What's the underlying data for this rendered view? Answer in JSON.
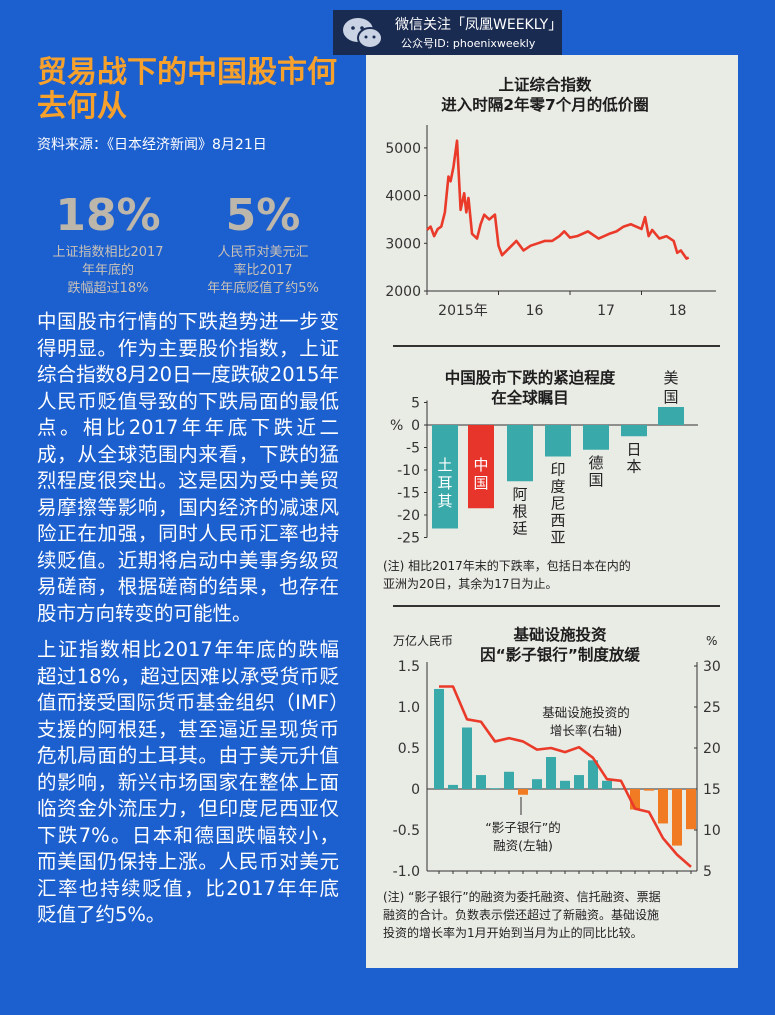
{
  "badge": {
    "line1": "微信关注「凤凰WEEKLY」",
    "line2": "公众号ID: phoenixweekly",
    "icon": "wechat-icon"
  },
  "article": {
    "title": "贸易战下的中国股市何去何从",
    "source": "资料来源：《日本经济新闻》8月21日",
    "stats": [
      {
        "value": "18%",
        "label": "上证指数相比2017年年底的跌幅超过18%"
      },
      {
        "value": "5%",
        "label": "人民币对美元汇率比2017年年底贬值了约5%"
      }
    ],
    "paragraphs": [
      "中国股市行情的下跌趋势进一步变得明显。作为主要股价指数，上证综合指数8月20日一度跌破2015年人民币贬值导致的下跌局面的最低点。相比2017年年底下跌近二成，从全球范围内来看，下跌的猛烈程度很突出。这是因为受中美贸易摩擦等影响，国内经济的减速风险正在加强，同时人民币汇率也持续贬值。近期将启动中美事务级贸易磋商，根据磋商的结果，也存在股市方向转变的可能性。",
      "上证指数相比2017年年底的跌幅超过18%，超过因难以承受货币贬值而接受国际货币基金组织（IMF）支援的阿根廷，甚至逼近呈现货币危机局面的土耳其。由于美元升值的影响，新兴市场国家在整体上面临资金外流压力，但印度尼西亚仅下跌7%。日本和德国跌幅较小，而美国仍保持上涨。人民币对美元汇率也持续贬值，比2017年年底贬值了约5%。"
    ]
  },
  "colors": {
    "background": "#1c5fce",
    "title": "#f6a12c",
    "panel": "#e9ebe5",
    "teal": "#3aa9a9",
    "red": "#e8352b",
    "orange": "#f07b22",
    "line": "#ea3a2a"
  },
  "chart_data": [
    {
      "type": "line",
      "title": "上证综合指数 进入时隔2年零7个月的低价圈",
      "title_lines": [
        "上证综合指数",
        "进入时隔2年零7个月的低价圈"
      ],
      "ylim": [
        2000,
        5000
      ],
      "yticks": [
        2000,
        3000,
        4000,
        5000
      ],
      "xtick_labels": [
        "2015年",
        "16",
        "17",
        "18"
      ],
      "grid": false,
      "series": [
        {
          "x": [
            2015.0,
            2015.05,
            2015.1,
            2015.15,
            2015.2,
            2015.25,
            2015.3,
            2015.33,
            2015.37,
            2015.42,
            2015.47,
            2015.52,
            2015.55,
            2015.58,
            2015.63,
            2015.7,
            2015.75,
            2015.8,
            2015.87,
            2015.95,
            2016.0,
            2016.05,
            2016.15,
            2016.25,
            2016.35,
            2016.45,
            2016.55,
            2016.65,
            2016.75,
            2016.85,
            2016.92,
            2017.0,
            2017.1,
            2017.25,
            2017.4,
            2017.55,
            2017.65,
            2017.75,
            2017.85,
            2018.0,
            2018.05,
            2018.1,
            2018.15,
            2018.25,
            2018.35,
            2018.45,
            2018.5,
            2018.55,
            2018.63,
            2018.66
          ],
          "y": [
            3280,
            3350,
            3150,
            3300,
            3350,
            3650,
            4400,
            4300,
            4600,
            5150,
            3700,
            4050,
            3650,
            3950,
            3200,
            3100,
            3400,
            3600,
            3500,
            3600,
            2950,
            2750,
            2900,
            3050,
            2850,
            2950,
            3000,
            3050,
            3050,
            3150,
            3250,
            3120,
            3150,
            3250,
            3100,
            3200,
            3250,
            3350,
            3400,
            3300,
            3550,
            3150,
            3280,
            3100,
            3150,
            3050,
            2800,
            2850,
            2680,
            2700
          ]
        }
      ]
    },
    {
      "type": "bar",
      "title": "中国股市下跌的紧迫程度 在全球瞩目",
      "title_lines": [
        "中国股市下跌的紧迫程度",
        "在全球瞩目"
      ],
      "ylabel": "%",
      "ylim": [
        -25,
        5
      ],
      "yticks": [
        5,
        0,
        -5,
        -10,
        -15,
        -20,
        -25
      ],
      "categories": [
        "土耳其",
        "中国",
        "阿根廷",
        "印度尼西亚",
        "德国",
        "日本",
        "美国"
      ],
      "values": [
        -23,
        -18.5,
        -12.5,
        -7,
        -5.5,
        -2.5,
        4
      ],
      "highlight": "中国",
      "note": [
        "(注) 相比2017年末的下跌率，包括日本在内的",
        "亚洲为20日，其余为17日为止。"
      ]
    },
    {
      "type": "bar",
      "title": "基础设施投资 因“影子银行”制度放缓",
      "title_lines": [
        "基础设施投资",
        "因“影子银行”制度放缓"
      ],
      "ylabel_left": "万亿人民币",
      "ylabel_right": "%",
      "ylim_left": [
        -1.0,
        1.5
      ],
      "yticks_left": [
        "1.5",
        "1.0",
        "0.5",
        "0",
        "-0.5",
        "-1.0"
      ],
      "ylim_right": [
        5,
        30
      ],
      "yticks_right": [
        "30",
        "25",
        "20",
        "15",
        "10",
        "5"
      ],
      "series": [
        {
          "name": "“影子银行”的融资(左轴)",
          "type": "bar",
          "values": [
            1.22,
            0.05,
            0.75,
            0.17,
            0.01,
            0.21,
            -0.07,
            0.12,
            0.39,
            0.1,
            0.17,
            0.35,
            0.1,
            0,
            -0.25,
            -0.02,
            -0.42,
            -0.69,
            -0.49
          ]
        },
        {
          "name": "基础设施投资的增长率(右轴)",
          "type": "line",
          "values": [
            27.5,
            27.5,
            23.5,
            23.2,
            20.8,
            21.2,
            20.8,
            19.8,
            20,
            19.5,
            20.1,
            18.8,
            16.2,
            16,
            12.6,
            12.2,
            9,
            7,
            5.5
          ]
        }
      ],
      "annotations": {
        "line": [
          "基础设施投资的",
          "增长率(右轴)"
        ],
        "bar": [
          "“影子银行”的",
          "融资(左轴)"
        ]
      },
      "note": [
        "(注) “影子银行”的融资为委托融资、信托融资、票据",
        "融资的合计。负数表示偿还超过了新融资。基础设施",
        "投资的增长率为1月开始到当月为止的同比比较。"
      ]
    }
  ]
}
